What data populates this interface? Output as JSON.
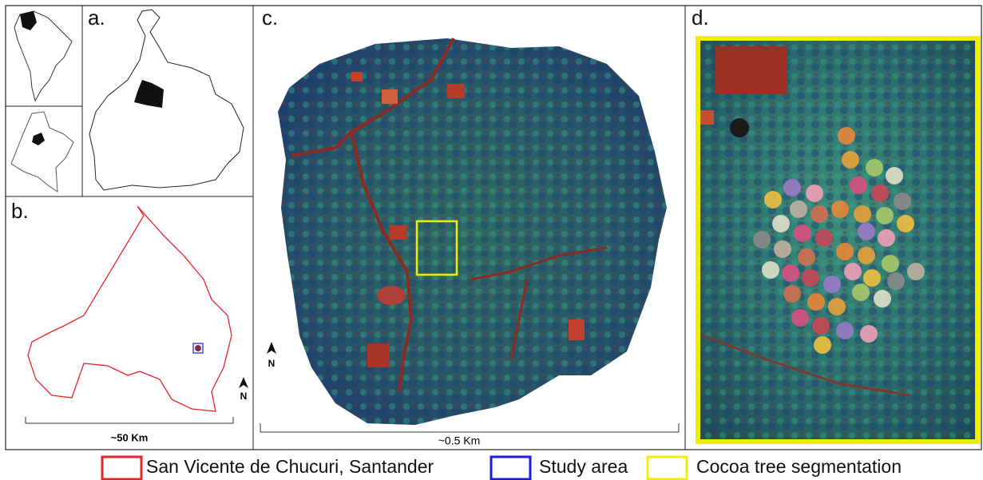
{
  "panels": [
    {
      "label": "a."
    },
    {
      "label": "b.",
      "north": "N",
      "scale": "~50 Km"
    },
    {
      "label": "c.",
      "north": "N",
      "scale": "~0.5 Km"
    },
    {
      "label": "d."
    }
  ],
  "legend": [
    {
      "label": "San Vicente de Chucuri, Santander",
      "color": "#e8242a"
    },
    {
      "label": "Study area",
      "color": "#1c1cdc"
    },
    {
      "label": "Cocoa tree segmentation",
      "color": "#f0ee00"
    }
  ]
}
